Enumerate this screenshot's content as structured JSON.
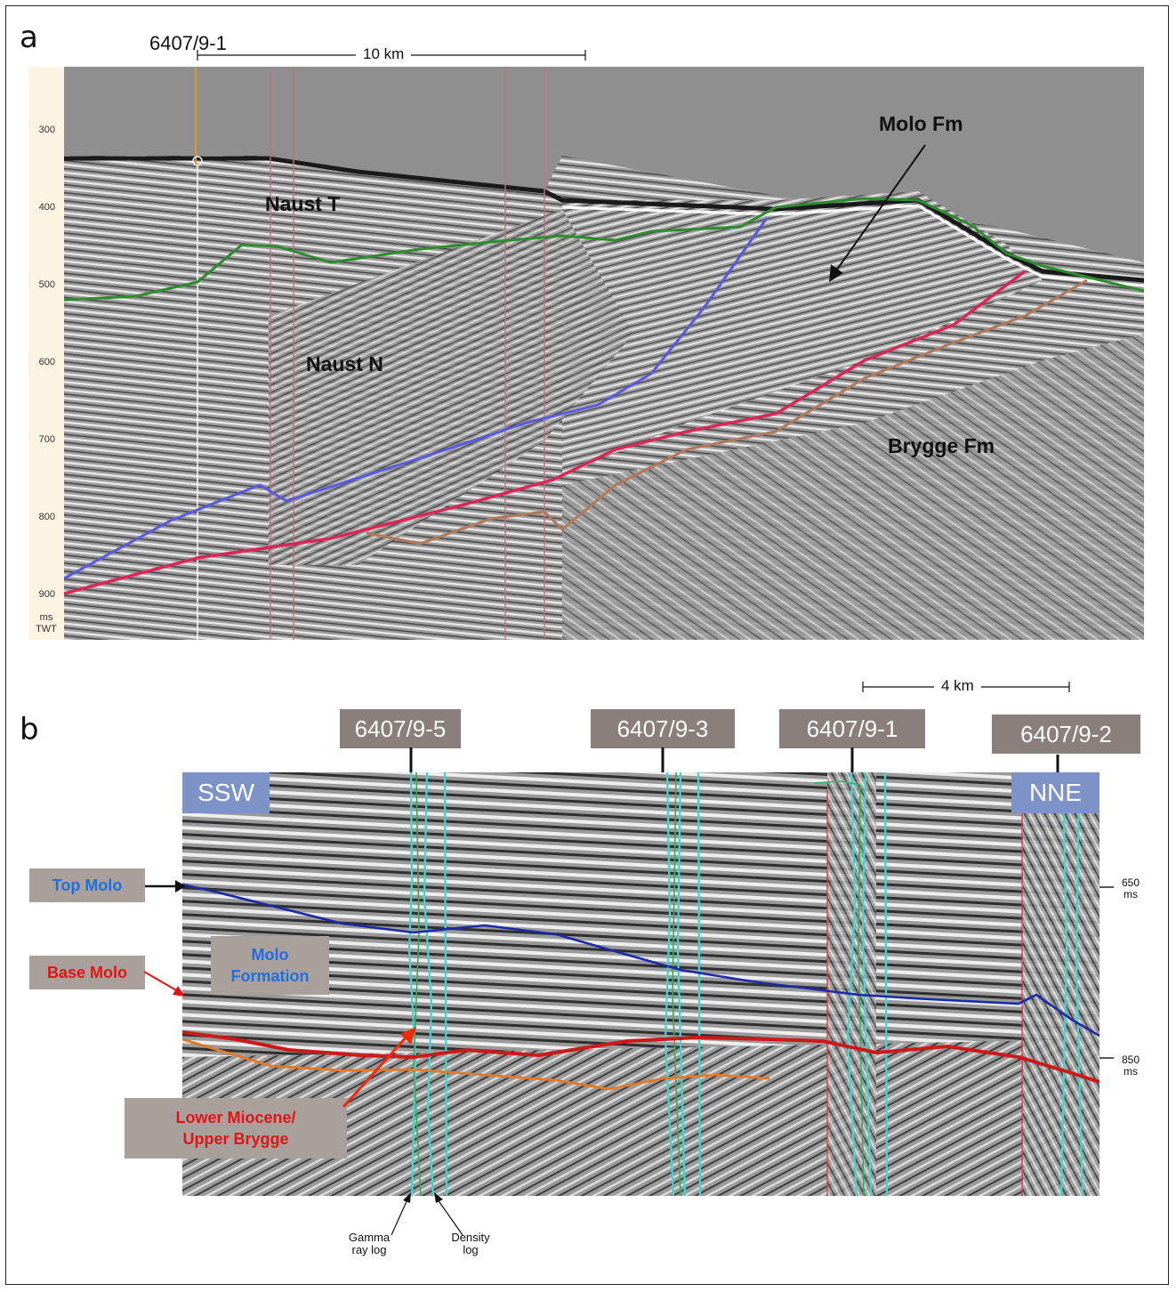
{
  "panel_a": {
    "letter": "a",
    "well_label": "6407/9-1",
    "scale_label": "10 km",
    "ticks": [
      "300",
      "400",
      "500",
      "600",
      "700",
      "800",
      "900"
    ],
    "unit_top": "ms",
    "unit_bottom": "TWT",
    "formations": {
      "naust_t": "Naust T",
      "naust_n": "Naust N",
      "molo": "Molo Fm",
      "brygge": "Brygge Fm"
    },
    "horizon_colors": {
      "green": "#2e8b2e",
      "blue": "#5a5ae0",
      "red": "#d8285a",
      "brown": "#b07a5a"
    }
  },
  "panel_b": {
    "letter": "b",
    "scale_label": "4 km",
    "wells": [
      "6407/9-5",
      "6407/9-3",
      "6407/9-1",
      "6407/9-2"
    ],
    "directions": {
      "left": "SSW",
      "right": "NNE"
    },
    "labels": {
      "top_molo": "Top Molo",
      "base_molo": "Base Molo",
      "molo_formation_1": "Molo",
      "molo_formation_2": "Formation",
      "lower_miocene_1": "Lower Miocene/",
      "lower_miocene_2": "Upper Brygge"
    },
    "ms_650": "650",
    "ms_850": "850",
    "ms_unit": "ms",
    "gamma_1": "Gamma",
    "gamma_2": "ray log",
    "density_1": "Density",
    "density_2": "log",
    "colors": {
      "top_molo": "#1a2aa8",
      "base_molo": "#cc1a1a",
      "lower_miocene": "#e07a2a",
      "logs": "#3fd6d0",
      "label_top": "#1f6fe0",
      "label_red": "#e01616"
    }
  }
}
